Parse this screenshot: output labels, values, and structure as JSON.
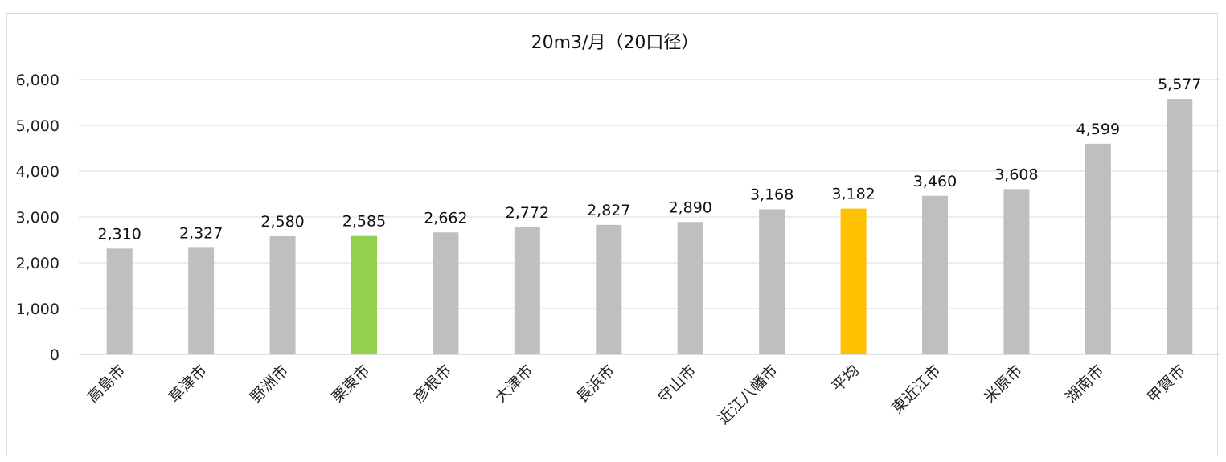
{
  "chart_data": {
    "type": "bar",
    "title": "20m3/月（20口径）",
    "xlabel": "",
    "ylabel": "",
    "ylim": [
      0,
      6000
    ],
    "yticks": [
      0,
      1000,
      2000,
      3000,
      4000,
      5000,
      6000
    ],
    "ytick_labels": [
      "0",
      "1,000",
      "2,000",
      "3,000",
      "4,000",
      "5,000",
      "6,000"
    ],
    "grid": true,
    "legend": "none",
    "categories": [
      "高島市",
      "草津市",
      "野洲市",
      "栗東市",
      "彦根市",
      "大津市",
      "長浜市",
      "守山市",
      "近江八幡市",
      "平均",
      "東近江市",
      "米原市",
      "湖南市",
      "甲賀市"
    ],
    "values": [
      2310,
      2327,
      2580,
      2585,
      2662,
      2772,
      2827,
      2890,
      3168,
      3182,
      3460,
      3608,
      4599,
      5577
    ],
    "value_labels": [
      "2,310",
      "2,327",
      "2,580",
      "2,585",
      "2,662",
      "2,772",
      "2,827",
      "2,890",
      "3,168",
      "3,182",
      "3,460",
      "3,608",
      "4,599",
      "5,577"
    ],
    "colors": {
      "default": "#bfbfbf",
      "highlight_city": "#92d050",
      "highlight_average": "#ffc000",
      "gridline": "#d9d9d9"
    },
    "bar_colors": [
      "#bfbfbf",
      "#bfbfbf",
      "#bfbfbf",
      "#92d050",
      "#bfbfbf",
      "#bfbfbf",
      "#bfbfbf",
      "#bfbfbf",
      "#bfbfbf",
      "#ffc000",
      "#bfbfbf",
      "#bfbfbf",
      "#bfbfbf",
      "#bfbfbf"
    ]
  }
}
